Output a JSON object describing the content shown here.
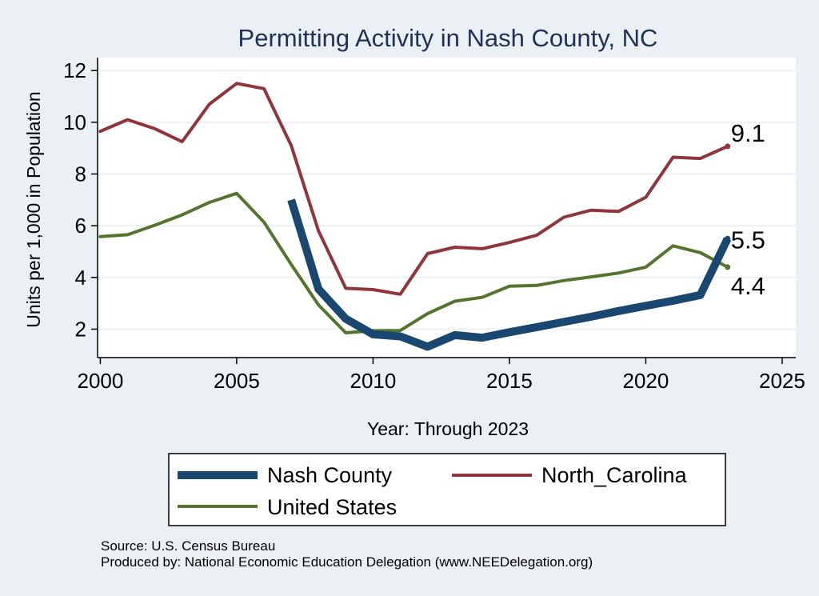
{
  "chart_data": {
    "type": "line",
    "title": "Permitting Activity in Nash County, NC",
    "xlabel": "Year: Through 2023",
    "ylabel": "Units per 1,000 in Population",
    "xlim": [
      1999.9,
      2025.5
    ],
    "ylim": [
      0.9,
      12.5
    ],
    "x_ticks": [
      2000,
      2005,
      2010,
      2015,
      2020,
      2025
    ],
    "y_ticks": [
      2,
      4,
      6,
      8,
      10,
      12
    ],
    "grid": true,
    "legend_position": "bottom",
    "series": [
      {
        "name": "Nash County",
        "color": "#1a476f",
        "x": [
          2007,
          2008,
          2009,
          2010,
          2011,
          2012,
          2013,
          2014,
          2015,
          2016,
          2017,
          2018,
          2019,
          2020,
          2021,
          2022,
          2023
        ],
        "values": [
          7.0,
          3.55,
          2.4,
          1.8,
          1.72,
          1.32,
          1.77,
          1.67,
          1.88,
          2.08,
          2.28,
          2.48,
          2.7,
          2.9,
          3.1,
          3.32,
          5.5
        ],
        "end_label": "5.5"
      },
      {
        "name": "North_Carolina",
        "color": "#90353b",
        "x": [
          2000,
          2001,
          2002,
          2003,
          2004,
          2005,
          2006,
          2007,
          2008,
          2009,
          2010,
          2011,
          2012,
          2013,
          2014,
          2015,
          2016,
          2017,
          2018,
          2019,
          2020,
          2021,
          2022,
          2023
        ],
        "values": [
          9.65,
          10.1,
          9.75,
          9.25,
          10.7,
          11.5,
          11.3,
          9.1,
          5.8,
          3.58,
          3.53,
          3.35,
          4.92,
          5.17,
          5.11,
          5.35,
          5.63,
          6.33,
          6.6,
          6.55,
          7.1,
          8.65,
          8.6,
          9.07
        ],
        "end_label": "9.1"
      },
      {
        "name": "United States",
        "color": "#55752f",
        "x": [
          2000,
          2001,
          2002,
          2003,
          2004,
          2005,
          2006,
          2007,
          2008,
          2009,
          2010,
          2011,
          2012,
          2013,
          2014,
          2015,
          2016,
          2017,
          2018,
          2019,
          2020,
          2021,
          2022,
          2023
        ],
        "values": [
          5.58,
          5.65,
          6.02,
          6.42,
          6.9,
          7.25,
          6.14,
          4.5,
          2.94,
          1.86,
          1.94,
          1.95,
          2.6,
          3.08,
          3.23,
          3.66,
          3.69,
          3.88,
          4.02,
          4.17,
          4.4,
          5.22,
          4.96,
          4.4
        ],
        "end_label": "4.4"
      }
    ],
    "source": "Source: U.S. Census Bureau",
    "produced_by": "Produced by: National Economic Education Delegation (www.NEEDelegation.org)"
  }
}
